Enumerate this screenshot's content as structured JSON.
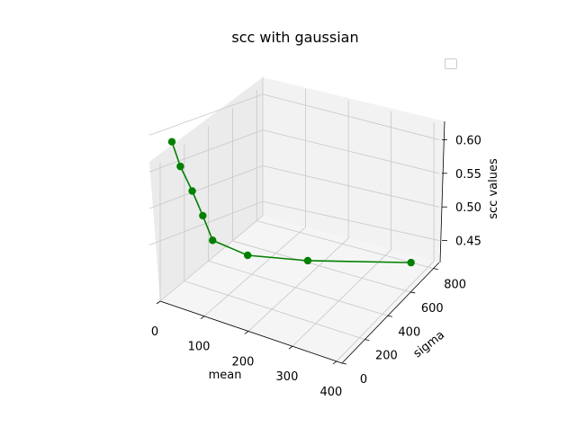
{
  "chart_data": {
    "type": "line",
    "projection": "3d",
    "title": "scc with gaussian",
    "xlabel": "mean",
    "ylabel": "sigma",
    "zlabel": "scc values",
    "x_ticks": [
      "0",
      "100",
      "200",
      "300",
      "400"
    ],
    "y_ticks": [
      "0",
      "200",
      "400",
      "600",
      "800"
    ],
    "z_ticks": [
      "0.45",
      "0.50",
      "0.55",
      "0.60"
    ],
    "xlim": [
      0,
      400
    ],
    "ylim": [
      0,
      850
    ],
    "zlim": [
      0.42,
      0.63
    ],
    "grid": true,
    "legend": "top-right",
    "series": [
      {
        "color": "#008000",
        "marker": "circle",
        "x": [
          0,
          0,
          0,
          0,
          0,
          0,
          0,
          0
        ],
        "y": [
          10,
          25,
          50,
          75,
          100,
          200,
          400,
          800
        ],
        "z": [
          0.62,
          0.58,
          0.54,
          0.5,
          0.46,
          0.435,
          0.425,
          0.42
        ]
      }
    ]
  }
}
